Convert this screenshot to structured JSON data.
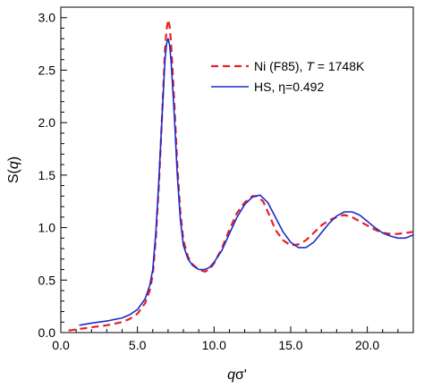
{
  "chart_data": {
    "type": "line",
    "title": "",
    "xlabel_main": "q",
    "xlabel_suffix": "σ'",
    "ylabel_main": "S(",
    "ylabel_var": "q",
    "ylabel_close": ")",
    "xlim": [
      0,
      23
    ],
    "ylim": [
      0,
      3.1
    ],
    "xticks": [
      0,
      5,
      10,
      15,
      20
    ],
    "xtick_labels": [
      "0.0",
      "5.0",
      "10.0",
      "15.0",
      "20.0"
    ],
    "yticks": [
      0,
      0.5,
      1.0,
      1.5,
      2.0,
      2.5,
      3.0
    ],
    "ytick_labels": [
      "0.0",
      "0.5",
      "1.0",
      "1.5",
      "2.0",
      "2.5",
      "3.0"
    ],
    "grid": false,
    "legend_position": "top-right",
    "series": [
      {
        "name_prefix": "Ni (F85), ",
        "name_var": "T",
        "name_suffix": " = 1748K",
        "color": "#e8202a",
        "dash": "dashed",
        "x": [
          0.5,
          1.0,
          2.0,
          3.0,
          4.0,
          4.5,
          5.0,
          5.5,
          5.8,
          6.0,
          6.2,
          6.4,
          6.6,
          6.8,
          6.9,
          7.0,
          7.1,
          7.2,
          7.4,
          7.6,
          7.8,
          8.0,
          8.3,
          8.6,
          9.0,
          9.4,
          9.7,
          10.0,
          10.5,
          11.0,
          11.5,
          12.0,
          12.5,
          12.8,
          13.2,
          13.6,
          14.0,
          14.5,
          15.0,
          15.5,
          16.0,
          16.5,
          17.0,
          17.5,
          18.0,
          18.5,
          19.0,
          19.5,
          20.0,
          20.5,
          21.0,
          21.5,
          22.0,
          22.5,
          23.0
        ],
        "y": [
          0.02,
          0.03,
          0.05,
          0.07,
          0.1,
          0.13,
          0.18,
          0.28,
          0.4,
          0.55,
          0.9,
          1.4,
          2.05,
          2.7,
          2.88,
          2.98,
          2.92,
          2.75,
          2.2,
          1.6,
          1.15,
          0.88,
          0.72,
          0.65,
          0.6,
          0.58,
          0.6,
          0.66,
          0.8,
          0.98,
          1.14,
          1.24,
          1.3,
          1.3,
          1.25,
          1.12,
          0.98,
          0.88,
          0.83,
          0.84,
          0.88,
          0.95,
          1.02,
          1.07,
          1.1,
          1.12,
          1.1,
          1.06,
          1.02,
          0.98,
          0.95,
          0.94,
          0.94,
          0.95,
          0.96
        ]
      },
      {
        "name_prefix": "HS, ",
        "name_var": "",
        "name_suffix": "η=0.492",
        "color": "#1a2bc9",
        "dash": "solid",
        "x": [
          1.2,
          2.0,
          3.0,
          4.0,
          4.5,
          5.0,
          5.5,
          5.8,
          6.0,
          6.2,
          6.4,
          6.6,
          6.8,
          6.9,
          7.0,
          7.1,
          7.2,
          7.4,
          7.6,
          7.8,
          8.0,
          8.3,
          8.6,
          9.0,
          9.4,
          9.7,
          10.0,
          10.5,
          11.0,
          11.5,
          12.0,
          12.5,
          13.0,
          13.5,
          14.0,
          14.5,
          15.0,
          15.5,
          16.0,
          16.5,
          17.0,
          17.5,
          18.0,
          18.5,
          19.0,
          19.5,
          20.0,
          20.5,
          21.0,
          21.5,
          22.0,
          22.5,
          23.0
        ],
        "y": [
          0.07,
          0.09,
          0.11,
          0.14,
          0.17,
          0.22,
          0.32,
          0.45,
          0.6,
          0.95,
          1.45,
          2.05,
          2.6,
          2.75,
          2.8,
          2.74,
          2.58,
          2.08,
          1.5,
          1.08,
          0.83,
          0.7,
          0.64,
          0.6,
          0.6,
          0.62,
          0.67,
          0.78,
          0.94,
          1.1,
          1.22,
          1.29,
          1.31,
          1.24,
          1.1,
          0.96,
          0.86,
          0.81,
          0.81,
          0.86,
          0.95,
          1.04,
          1.11,
          1.15,
          1.15,
          1.12,
          1.06,
          1.0,
          0.95,
          0.92,
          0.9,
          0.9,
          0.93
        ]
      }
    ]
  }
}
